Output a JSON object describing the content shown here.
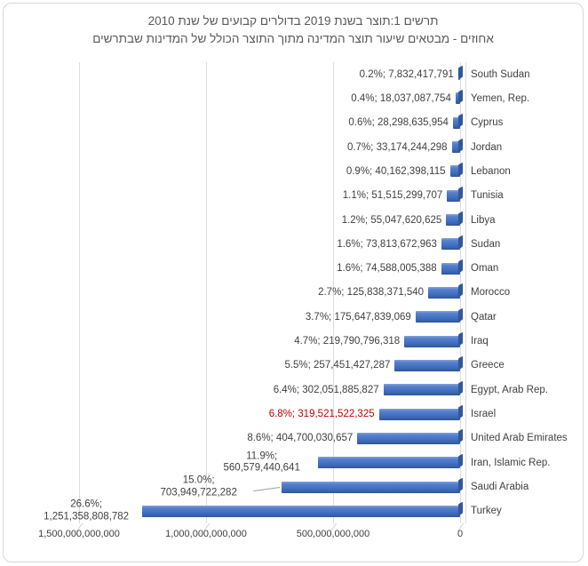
{
  "chart_data": {
    "type": "bar",
    "orientation": "horizontal",
    "title": "תרשים 1:תוצר בשנת 2019 בדולרים קבועים של שנת 2010",
    "subtitle": "אחוזים - מבטאים שיעור תוצר המדינה מתוך התוצר הכולל של המדינות שבתרשים",
    "value_axis_reversed": true,
    "xlim": [
      0,
      1500000000000
    ],
    "x_tick_labels": [
      "1,500,000,000,000",
      "1,000,000,000,000",
      "500,000,000,000",
      "0"
    ],
    "grid": true,
    "legend": "none",
    "label_format": "percent; value",
    "points": [
      {
        "name": "South Sudan",
        "pct": "0.2%",
        "value": 7832417791,
        "value_label": "7,832,417,791"
      },
      {
        "name": "Yemen, Rep.",
        "pct": "0.4%",
        "value": 18037087754,
        "value_label": "18,037,087,754"
      },
      {
        "name": "Cyprus",
        "pct": "0.6%",
        "value": 28298635954,
        "value_label": "28,298,635,954"
      },
      {
        "name": "Jordan",
        "pct": "0.7%",
        "value": 33174244298,
        "value_label": "33,174,244,298"
      },
      {
        "name": "Lebanon",
        "pct": "0.9%",
        "value": 40162398115,
        "value_label": "40,162,398,115"
      },
      {
        "name": "Tunisia",
        "pct": "1.1%",
        "value": 51515299707,
        "value_label": "51,515,299,707"
      },
      {
        "name": "Libya",
        "pct": "1.2%",
        "value": 55047620625,
        "value_label": "55,047,620,625"
      },
      {
        "name": "Sudan",
        "pct": "1.6%",
        "value": 73813672963,
        "value_label": "73,813,672,963"
      },
      {
        "name": "Oman",
        "pct": "1.6%",
        "value": 74588005388,
        "value_label": "74,588,005,388"
      },
      {
        "name": "Morocco",
        "pct": "2.7%",
        "value": 125838371540,
        "value_label": "125,838,371,540"
      },
      {
        "name": "Qatar",
        "pct": "3.7%",
        "value": 175647839069,
        "value_label": "175,647,839,069"
      },
      {
        "name": "Iraq",
        "pct": "4.7%",
        "value": 219790796318,
        "value_label": "219,790,796,318"
      },
      {
        "name": "Greece",
        "pct": "5.5%",
        "value": 257451427287,
        "value_label": "257,451,427,287"
      },
      {
        "name": "Egypt, Arab Rep.",
        "pct": "6.4%",
        "value": 302051885827,
        "value_label": "302,051,885,827"
      },
      {
        "name": "Israel",
        "pct": "6.8%",
        "value": 319521522325,
        "value_label": "319,521,522,325",
        "highlight": true
      },
      {
        "name": "United Arab Emirates",
        "pct": "8.6%",
        "value": 404700030657,
        "value_label": "404,700,030,657"
      },
      {
        "name": "Iran, Islamic Rep.",
        "pct": "11.9%",
        "value": 560579440641,
        "value_label": "560,579,440,641",
        "wrap": true
      },
      {
        "name": "Saudi Arabia",
        "pct": "15.0%",
        "value": 703949722282,
        "value_label": "703,949,722,282",
        "wrap": true,
        "leader": true
      },
      {
        "name": "Turkey",
        "pct": "26.6%",
        "value": 1251358808782,
        "value_label": "1,251,358,808,782",
        "wrap": true
      }
    ],
    "colors": {
      "bar": "#4472C4",
      "bar_dark": "#2F5597",
      "highlight_label": "#C00000",
      "label_text": "#404040",
      "title_text": "#595959",
      "gridline": "#DCDCDC"
    }
  }
}
